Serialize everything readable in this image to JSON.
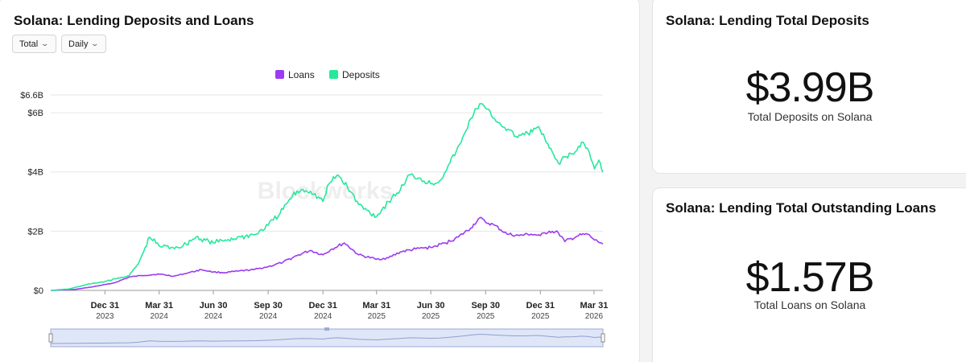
{
  "main": {
    "title": "Solana: Lending Deposits and Loans",
    "dropdown_total": "Total",
    "dropdown_daily": "Daily",
    "watermark": "Blockworks"
  },
  "deposits_card": {
    "title": "Solana: Lending Total Deposits",
    "value": "$3.99B",
    "caption": "Total Deposits on Solana"
  },
  "loans_card": {
    "title": "Solana: Lending Total Outstanding Loans",
    "value": "$1.57B",
    "caption": "Total Loans on Solana"
  },
  "colors": {
    "loans": "#9b3cf0",
    "deposits": "#27e89b",
    "grid": "#e6e6e6",
    "navigator_fill": "#dfe6f7",
    "navigator_border": "#9aaad6"
  },
  "chart_data": {
    "type": "line",
    "title": "Solana: Lending Deposits and Loans",
    "xlabel": "",
    "ylabel": "",
    "x_start": "2023-10-01",
    "x_end": "2026-04-15",
    "ylim": [
      0,
      6.6
    ],
    "y_ticks": [
      {
        "value": 0,
        "label": "$0",
        "bold": false
      },
      {
        "value": 2,
        "label": "$2B",
        "bold": false
      },
      {
        "value": 4,
        "label": "$4B",
        "bold": false
      },
      {
        "value": 6,
        "label": "$6B",
        "bold": false
      },
      {
        "value": 6.6,
        "label": "$6.6B",
        "bold": false
      }
    ],
    "x_ticks": [
      {
        "date": "2023-12-31",
        "label": "Dec 31",
        "year": "2023"
      },
      {
        "date": "2024-03-31",
        "label": "Mar 31",
        "year": "2024"
      },
      {
        "date": "2024-06-30",
        "label": "Jun 30",
        "year": "2024"
      },
      {
        "date": "2024-09-30",
        "label": "Sep 30",
        "year": "2024"
      },
      {
        "date": "2024-12-31",
        "label": "Dec 31",
        "year": "2024"
      },
      {
        "date": "2025-03-31",
        "label": "Mar 31",
        "year": "2025"
      },
      {
        "date": "2025-06-30",
        "label": "Jun 30",
        "year": "2025"
      },
      {
        "date": "2025-09-30",
        "label": "Sep 30",
        "year": "2025"
      },
      {
        "date": "2025-12-31",
        "label": "Dec 31",
        "year": "2025"
      },
      {
        "date": "2026-03-31",
        "label": "Mar 31",
        "year": "2026"
      }
    ],
    "legend_position": "top-center",
    "grid": true,
    "series": [
      {
        "name": "Loans",
        "color": "#9b3cf0",
        "points": [
          [
            "2023-10-01",
            0.0
          ],
          [
            "2023-11-10",
            0.03
          ],
          [
            "2023-12-10",
            0.12
          ],
          [
            "2024-01-15",
            0.25
          ],
          [
            "2024-02-10",
            0.45
          ],
          [
            "2024-03-01",
            0.5
          ],
          [
            "2024-03-31",
            0.55
          ],
          [
            "2024-04-25",
            0.48
          ],
          [
            "2024-05-20",
            0.6
          ],
          [
            "2024-06-10",
            0.7
          ],
          [
            "2024-06-30",
            0.62
          ],
          [
            "2024-07-20",
            0.6
          ],
          [
            "2024-08-10",
            0.65
          ],
          [
            "2024-09-05",
            0.7
          ],
          [
            "2024-09-30",
            0.8
          ],
          [
            "2024-10-25",
            0.95
          ],
          [
            "2024-11-20",
            1.2
          ],
          [
            "2024-12-10",
            1.35
          ],
          [
            "2024-12-31",
            1.2
          ],
          [
            "2025-01-15",
            1.4
          ],
          [
            "2025-02-05",
            1.6
          ],
          [
            "2025-03-01",
            1.2
          ],
          [
            "2025-03-31",
            1.05
          ],
          [
            "2025-04-20",
            1.1
          ],
          [
            "2025-05-10",
            1.3
          ],
          [
            "2025-06-05",
            1.4
          ],
          [
            "2025-06-30",
            1.45
          ],
          [
            "2025-07-25",
            1.6
          ],
          [
            "2025-08-15",
            1.8
          ],
          [
            "2025-09-05",
            2.1
          ],
          [
            "2025-09-20",
            2.45
          ],
          [
            "2025-09-30",
            2.3
          ],
          [
            "2025-10-15",
            2.2
          ],
          [
            "2025-11-05",
            1.9
          ],
          [
            "2025-11-25",
            1.85
          ],
          [
            "2025-12-15",
            1.9
          ],
          [
            "2025-12-31",
            1.85
          ],
          [
            "2026-01-15",
            2.0
          ],
          [
            "2026-01-30",
            1.95
          ],
          [
            "2026-02-10",
            1.65
          ],
          [
            "2026-03-05",
            1.85
          ],
          [
            "2026-03-20",
            1.9
          ],
          [
            "2026-04-01",
            1.7
          ],
          [
            "2026-04-15",
            1.57
          ]
        ]
      },
      {
        "name": "Deposits",
        "color": "#27e89b",
        "points": [
          [
            "2023-10-01",
            0.0
          ],
          [
            "2023-11-01",
            0.05
          ],
          [
            "2023-12-01",
            0.2
          ],
          [
            "2023-12-31",
            0.3
          ],
          [
            "2024-01-20",
            0.4
          ],
          [
            "2024-02-10",
            0.5
          ],
          [
            "2024-02-25",
            0.9
          ],
          [
            "2024-03-05",
            1.3
          ],
          [
            "2024-03-15",
            1.8
          ],
          [
            "2024-03-31",
            1.5
          ],
          [
            "2024-04-20",
            1.45
          ],
          [
            "2024-05-10",
            1.5
          ],
          [
            "2024-06-01",
            1.8
          ],
          [
            "2024-06-30",
            1.6
          ],
          [
            "2024-07-20",
            1.7
          ],
          [
            "2024-08-15",
            1.8
          ],
          [
            "2024-09-10",
            1.9
          ],
          [
            "2024-09-30",
            2.2
          ],
          [
            "2024-10-20",
            2.6
          ],
          [
            "2024-11-10",
            3.2
          ],
          [
            "2024-11-25",
            3.4
          ],
          [
            "2024-12-10",
            3.35
          ],
          [
            "2024-12-31",
            3.0
          ],
          [
            "2025-01-10",
            3.6
          ],
          [
            "2025-01-25",
            3.9
          ],
          [
            "2025-02-10",
            3.5
          ],
          [
            "2025-03-01",
            2.9
          ],
          [
            "2025-03-15",
            2.7
          ],
          [
            "2025-03-31",
            2.5
          ],
          [
            "2025-04-20",
            3.0
          ],
          [
            "2025-05-10",
            3.4
          ],
          [
            "2025-05-25",
            3.9
          ],
          [
            "2025-06-10",
            3.8
          ],
          [
            "2025-06-30",
            3.6
          ],
          [
            "2025-07-15",
            3.7
          ],
          [
            "2025-08-01",
            4.3
          ],
          [
            "2025-08-20",
            5.0
          ],
          [
            "2025-09-05",
            5.8
          ],
          [
            "2025-09-20",
            6.3
          ],
          [
            "2025-09-30",
            6.15
          ],
          [
            "2025-10-15",
            5.8
          ],
          [
            "2025-11-01",
            5.5
          ],
          [
            "2025-11-20",
            5.2
          ],
          [
            "2025-12-10",
            5.3
          ],
          [
            "2025-12-25",
            5.5
          ],
          [
            "2025-12-31",
            5.4
          ],
          [
            "2026-01-15",
            4.8
          ],
          [
            "2026-01-30",
            4.3
          ],
          [
            "2026-02-10",
            4.5
          ],
          [
            "2026-02-25",
            4.6
          ],
          [
            "2026-03-10",
            5.0
          ],
          [
            "2026-03-20",
            4.8
          ],
          [
            "2026-04-01",
            4.1
          ],
          [
            "2026-04-08",
            4.4
          ],
          [
            "2026-04-15",
            3.99
          ]
        ]
      }
    ]
  }
}
